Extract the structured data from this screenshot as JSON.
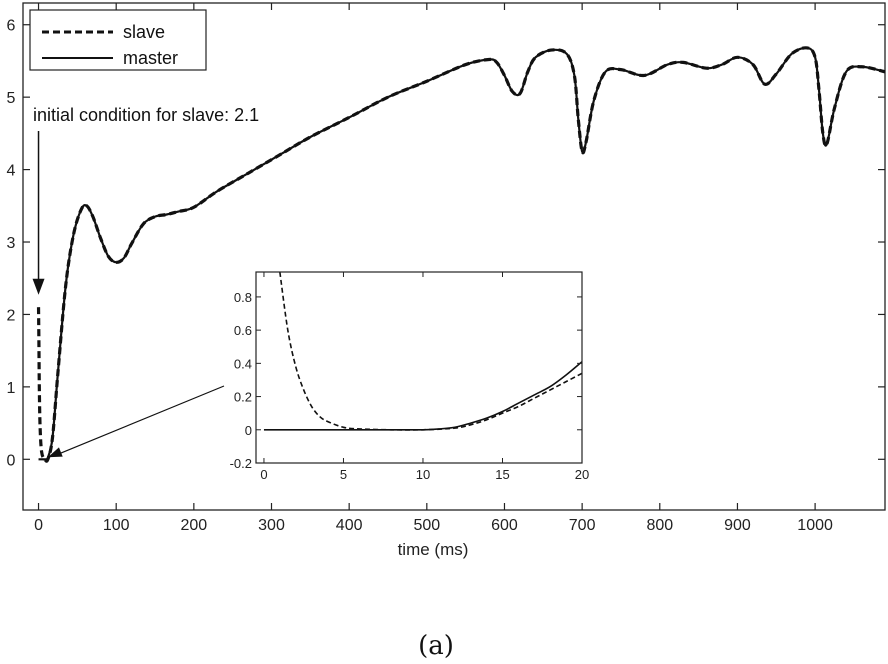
{
  "chart_data": [
    {
      "type": "line",
      "xlabel": "time (ms)",
      "ylabel": "",
      "xlim": [
        -20,
        1090
      ],
      "ylim": [
        -0.7,
        6.3
      ],
      "xticks": [
        0,
        100,
        200,
        300,
        400,
        500,
        600,
        700,
        800,
        900,
        1000
      ],
      "yticks": [
        0,
        1,
        2,
        3,
        4,
        5,
        6
      ],
      "grid": false,
      "legend_position": "top-left",
      "series": [
        {
          "name": "slave",
          "style": "dashed",
          "x": [
            0,
            0.5,
            1,
            2,
            4,
            8,
            12,
            18,
            25,
            35,
            45,
            55,
            62,
            70,
            80,
            90,
            100,
            110,
            120,
            135,
            150,
            165,
            180,
            200,
            230,
            270,
            310,
            350,
            400,
            450,
            500,
            550,
            580,
            590,
            600,
            610,
            620,
            630,
            640,
            660,
            680,
            690,
            695,
            700,
            705,
            715,
            730,
            750,
            780,
            810,
            830,
            860,
            880,
            900,
            920,
            935,
            950,
            970,
            990,
            1000,
            1005,
            1010,
            1015,
            1025,
            1040,
            1060,
            1090
          ],
          "y": [
            2.1,
            1.6,
            1.0,
            0.45,
            0.1,
            0.0,
            0.0,
            0.3,
            1.2,
            2.4,
            3.1,
            3.45,
            3.5,
            3.35,
            3.05,
            2.8,
            2.72,
            2.78,
            2.98,
            3.25,
            3.35,
            3.38,
            3.42,
            3.48,
            3.7,
            3.95,
            4.2,
            4.45,
            4.72,
            5.0,
            5.22,
            5.45,
            5.52,
            5.48,
            5.3,
            5.08,
            5.05,
            5.35,
            5.55,
            5.65,
            5.6,
            5.3,
            4.7,
            4.25,
            4.38,
            4.95,
            5.35,
            5.38,
            5.3,
            5.45,
            5.48,
            5.4,
            5.45,
            5.55,
            5.45,
            5.18,
            5.32,
            5.6,
            5.68,
            5.55,
            5.1,
            4.5,
            4.35,
            4.85,
            5.35,
            5.42,
            5.35
          ]
        },
        {
          "name": "master",
          "style": "solid",
          "x": [
            0,
            5,
            10,
            12,
            18,
            25,
            35,
            45,
            55,
            62,
            70,
            80,
            90,
            100,
            110,
            120,
            135,
            150,
            165,
            180,
            200,
            230,
            270,
            310,
            350,
            400,
            450,
            500,
            550,
            580,
            590,
            600,
            610,
            620,
            630,
            640,
            660,
            680,
            690,
            695,
            700,
            705,
            715,
            730,
            750,
            780,
            810,
            830,
            860,
            880,
            900,
            920,
            935,
            950,
            970,
            990,
            1000,
            1005,
            1010,
            1015,
            1025,
            1040,
            1060,
            1090
          ],
          "y": [
            0.0,
            0.0,
            0.0,
            0.02,
            0.3,
            1.2,
            2.4,
            3.1,
            3.45,
            3.5,
            3.35,
            3.05,
            2.8,
            2.72,
            2.78,
            2.98,
            3.25,
            3.35,
            3.38,
            3.42,
            3.48,
            3.7,
            3.95,
            4.2,
            4.45,
            4.72,
            5.0,
            5.22,
            5.45,
            5.52,
            5.48,
            5.3,
            5.08,
            5.05,
            5.35,
            5.55,
            5.65,
            5.6,
            5.3,
            4.7,
            4.25,
            4.38,
            4.95,
            5.35,
            5.38,
            5.3,
            5.45,
            5.48,
            5.4,
            5.45,
            5.55,
            5.45,
            5.18,
            5.32,
            5.6,
            5.68,
            5.55,
            5.1,
            4.5,
            4.35,
            4.85,
            5.35,
            5.42,
            5.35
          ]
        }
      ],
      "annotations": [
        {
          "text": "initial condition for slave: 2.1",
          "arrow_to": [
            0,
            2.3
          ]
        }
      ]
    },
    {
      "type": "line",
      "role": "inset",
      "xlim": [
        -0.5,
        20
      ],
      "ylim": [
        -0.2,
        0.95
      ],
      "xticks": [
        0,
        5,
        10,
        15,
        20
      ],
      "yticks": [
        -0.2,
        0,
        0.2,
        0.4,
        0.6,
        0.8
      ],
      "ytick_labels": [
        "-0.2",
        "0",
        "0.2",
        "0.4",
        "0.6",
        "0.8"
      ],
      "series": [
        {
          "name": "slave",
          "style": "dashed",
          "x": [
            1.0,
            1.5,
            2,
            2.5,
            3,
            3.5,
            4,
            5,
            6,
            8,
            10,
            12,
            13,
            14,
            15,
            16,
            17,
            18,
            19,
            20
          ],
          "y": [
            0.95,
            0.6,
            0.38,
            0.24,
            0.14,
            0.08,
            0.05,
            0.015,
            0.005,
            0.0,
            0.0,
            0.01,
            0.03,
            0.06,
            0.1,
            0.14,
            0.19,
            0.24,
            0.29,
            0.34
          ]
        },
        {
          "name": "master",
          "style": "solid",
          "x": [
            0,
            2,
            4,
            6,
            8,
            10,
            11,
            12,
            13,
            14,
            15,
            16,
            17,
            18,
            19,
            20
          ],
          "y": [
            0.0,
            0.0,
            0.0,
            0.0,
            0.0,
            0.0,
            0.005,
            0.015,
            0.04,
            0.07,
            0.11,
            0.16,
            0.21,
            0.26,
            0.33,
            0.41
          ]
        }
      ]
    }
  ],
  "caption": "(a)"
}
